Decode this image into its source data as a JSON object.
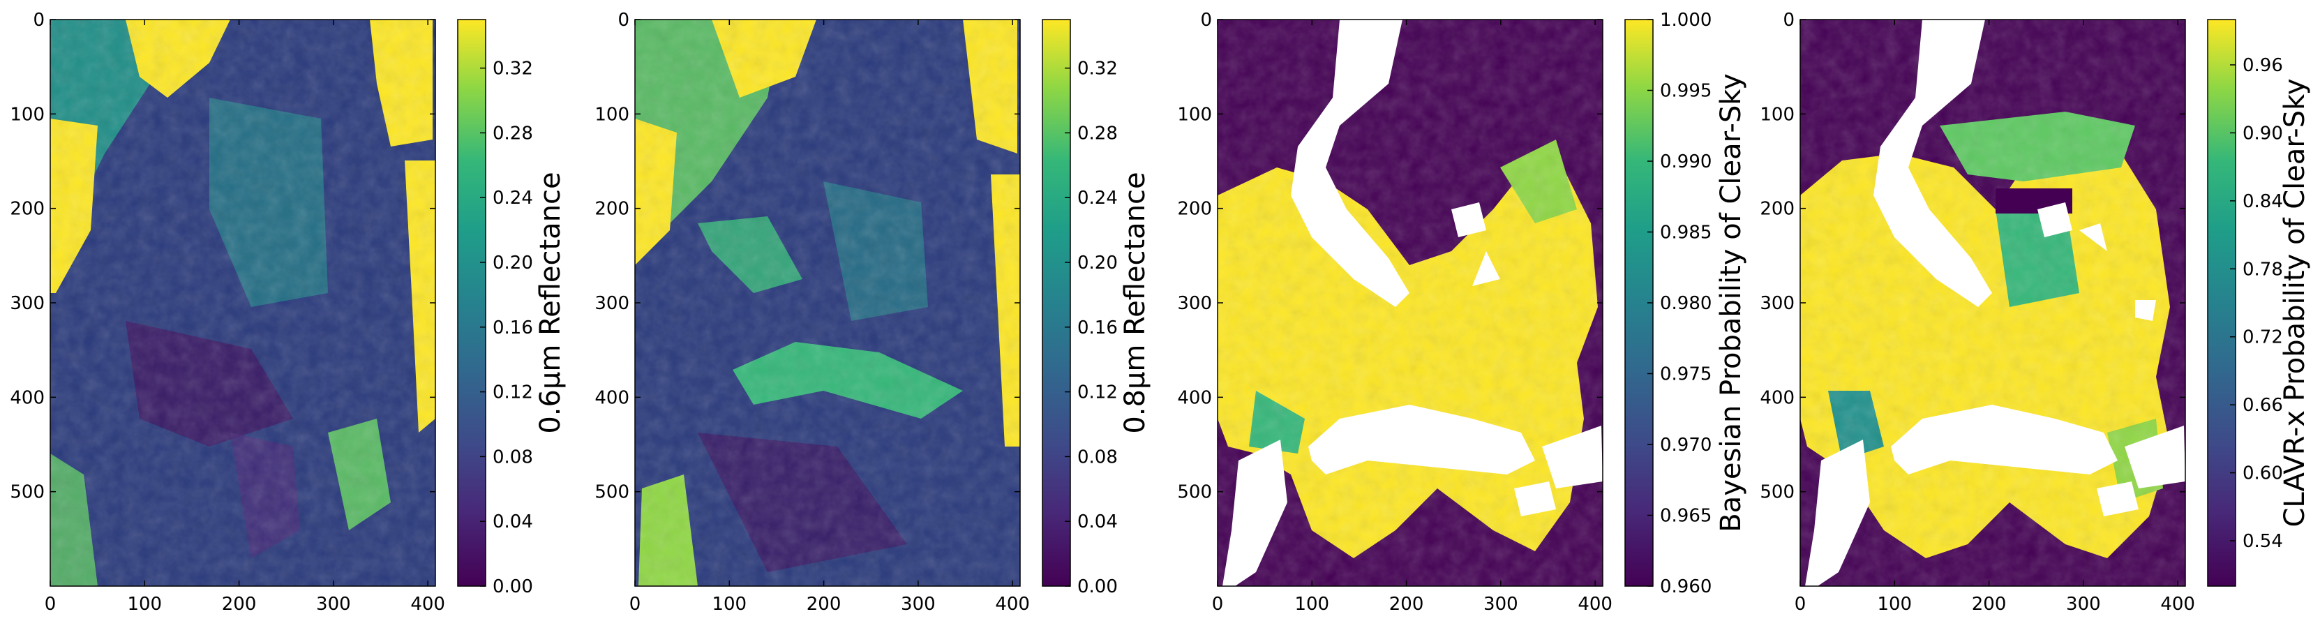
{
  "chart_data": [
    {
      "type": "heatmap",
      "panel": "reflectance_0p6",
      "colormap": "viridis",
      "colorbar_label": "0.6μm Reflectance",
      "colorbar_ticks": [
        "0.00",
        "0.04",
        "0.08",
        "0.12",
        "0.16",
        "0.20",
        "0.24",
        "0.28",
        "0.32"
      ],
      "clim": [
        0.0,
        0.35
      ],
      "xlim": [
        0,
        408
      ],
      "ylim": [
        600,
        0
      ],
      "x_ticks": [
        "0",
        "100",
        "200",
        "300",
        "400"
      ],
      "y_ticks": [
        "0",
        "100",
        "200",
        "300",
        "400",
        "500"
      ]
    },
    {
      "type": "heatmap",
      "panel": "reflectance_0p8",
      "colormap": "viridis",
      "colorbar_label": "0.8μm Reflectance",
      "colorbar_ticks": [
        "0.00",
        "0.04",
        "0.08",
        "0.12",
        "0.16",
        "0.20",
        "0.24",
        "0.28",
        "0.32"
      ],
      "clim": [
        0.0,
        0.35
      ],
      "xlim": [
        0,
        408
      ],
      "ylim": [
        600,
        0
      ],
      "x_ticks": [
        "0",
        "100",
        "200",
        "300",
        "400"
      ],
      "y_ticks": [
        "0",
        "100",
        "200",
        "300",
        "400",
        "500"
      ]
    },
    {
      "type": "heatmap",
      "panel": "bayesian_clear_sky",
      "colormap": "viridis",
      "colorbar_label": "Bayesian Probability of Clear-Sky",
      "colorbar_ticks": [
        "0.960",
        "0.965",
        "0.970",
        "0.975",
        "0.980",
        "0.985",
        "0.990",
        "0.995",
        "1.000"
      ],
      "clim": [
        0.96,
        1.0
      ],
      "xlim": [
        0,
        408
      ],
      "ylim": [
        600,
        0
      ],
      "x_ticks": [
        "0",
        "100",
        "200",
        "300",
        "400"
      ],
      "y_ticks": [
        "0",
        "100",
        "200",
        "300",
        "400",
        "500"
      ]
    },
    {
      "type": "heatmap",
      "panel": "clavrx_clear_sky",
      "colormap": "viridis",
      "colorbar_label": "CLAVR-x Probability of Clear-Sky",
      "colorbar_ticks": [
        "0.54",
        "0.60",
        "0.66",
        "0.72",
        "0.78",
        "0.84",
        "0.90",
        "0.96"
      ],
      "clim": [
        0.5,
        1.0
      ],
      "xlim": [
        0,
        408
      ],
      "ylim": [
        600,
        0
      ],
      "x_ticks": [
        "0",
        "100",
        "200",
        "300",
        "400"
      ],
      "y_ticks": [
        "0",
        "100",
        "200",
        "300",
        "400",
        "500"
      ]
    }
  ],
  "colors": {
    "viridis_0": "#440154",
    "viridis_1": "#3b528b",
    "viridis_2": "#21918c",
    "viridis_3": "#5ec962",
    "viridis_4": "#fde725",
    "mask": "#ffffff"
  }
}
